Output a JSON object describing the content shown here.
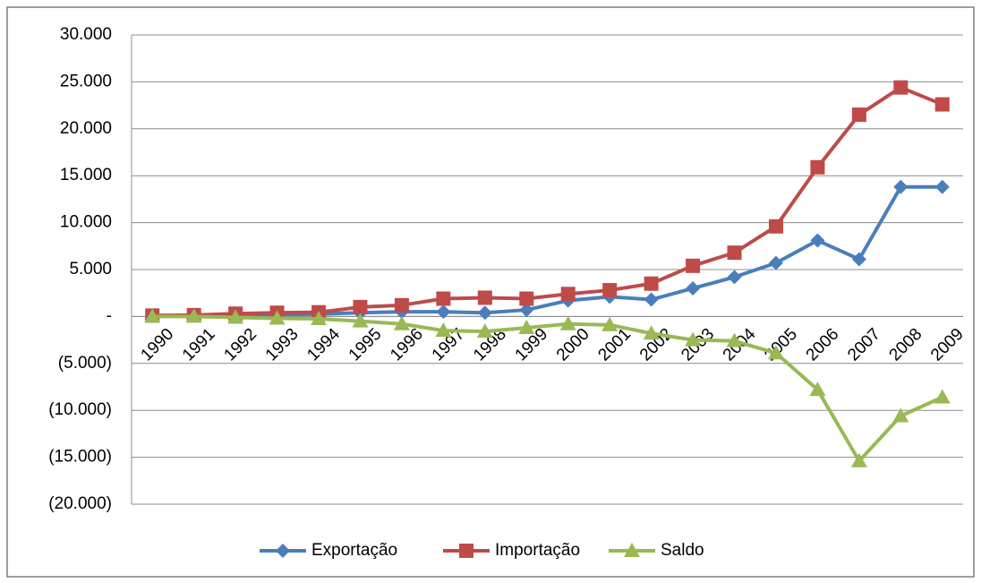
{
  "chart_data": {
    "type": "line",
    "categories": [
      "1990",
      "1991",
      "1992",
      "1993",
      "1994",
      "1995",
      "1996",
      "1997",
      "1998",
      "1999",
      "2000",
      "2001",
      "2002",
      "2003",
      "2004",
      "2005",
      "2006",
      "2007",
      "2008",
      "2009"
    ],
    "series": [
      {
        "name": "Exportação",
        "color": "#4a7ebb",
        "marker": "diamond",
        "values": [
          100,
          100,
          150,
          200,
          250,
          400,
          500,
          500,
          400,
          700,
          1700,
          2100,
          1800,
          3000,
          4200,
          5700,
          8100,
          6100,
          13800,
          13800
        ]
      },
      {
        "name": "Importação",
        "color": "#be4b48",
        "marker": "square",
        "values": [
          100,
          150,
          300,
          400,
          450,
          1000,
          1200,
          1900,
          2000,
          1900,
          2400,
          2800,
          3500,
          5400,
          6800,
          9600,
          15900,
          21500,
          24400,
          22600
        ]
      },
      {
        "name": "Saldo",
        "color": "#98b954",
        "marker": "triangle",
        "values": [
          0,
          0,
          -100,
          -200,
          -250,
          -500,
          -800,
          -1500,
          -1600,
          -1200,
          -800,
          -900,
          -1800,
          -2500,
          -2600,
          -3900,
          -7800,
          -15400,
          -10600,
          -8600
        ]
      }
    ],
    "ylim": [
      -20000,
      30000
    ],
    "yticks": [
      {
        "value": -20000,
        "label": "(20.000)"
      },
      {
        "value": -15000,
        "label": "(15.000)"
      },
      {
        "value": -10000,
        "label": "(10.000)"
      },
      {
        "value": -5000,
        "label": "(5.000)"
      },
      {
        "value": 0,
        "label": "-"
      },
      {
        "value": 5000,
        "label": "5.000"
      },
      {
        "value": 10000,
        "label": "10.000"
      },
      {
        "value": 15000,
        "label": "15.000"
      },
      {
        "value": 20000,
        "label": "20.000"
      },
      {
        "value": 25000,
        "label": "25.000"
      },
      {
        "value": 30000,
        "label": "30.000"
      }
    ],
    "grid": true,
    "legend": "bottom"
  }
}
